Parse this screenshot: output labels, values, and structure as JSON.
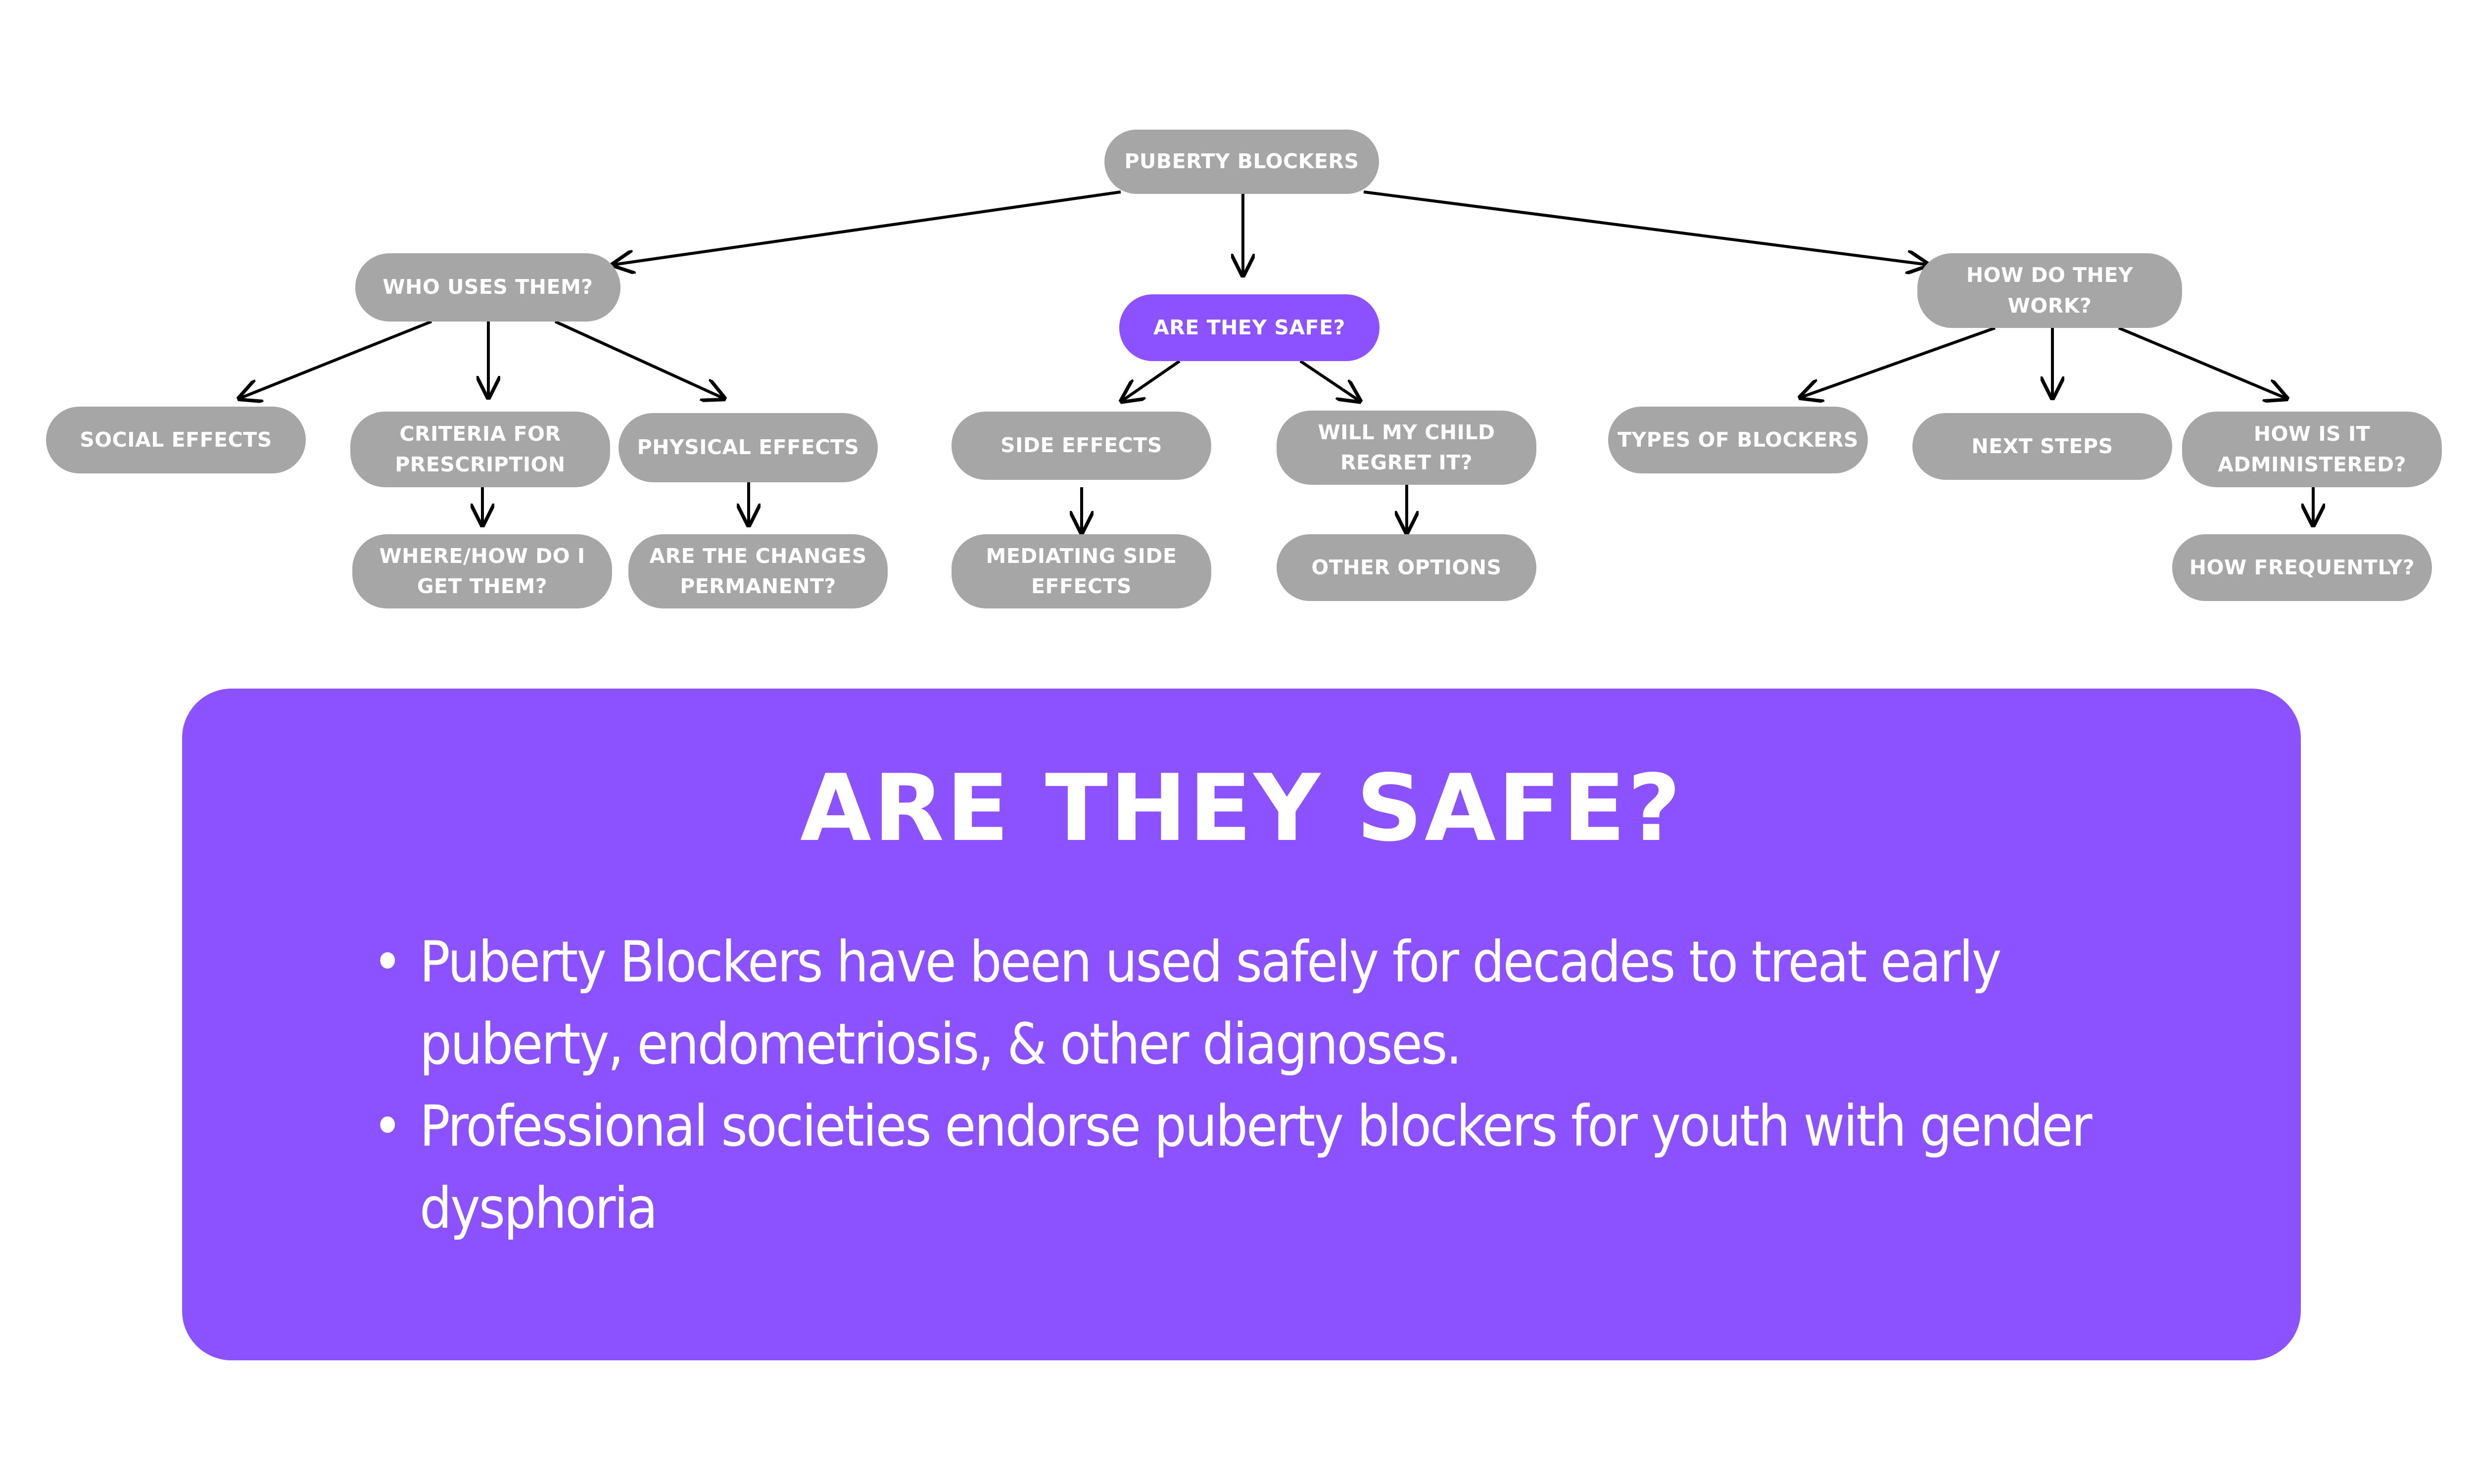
{
  "colors": {
    "node_default": "#a6a6a6",
    "node_active": "#8c52ff",
    "panel": "#8c52ff",
    "text": "#ffffff",
    "arrow": "#000000"
  },
  "nodes": {
    "root": "PUBERTY BLOCKERS",
    "who_uses": "WHO USES THEM?",
    "are_safe": "ARE THEY SAFE?",
    "how_work": "HOW DO THEY WORK?",
    "social_effects": "SOCIAL EFFECTS",
    "criteria": "CRITERIA FOR PRESCRIPTION",
    "physical_effects": "PHYSICAL EFFECTS",
    "where_how": "WHERE/HOW DO I GET THEM?",
    "changes_permanent": "ARE THE CHANGES PERMANENT?",
    "side_effects": "SIDE EFFECTS",
    "regret": "WILL MY CHILD REGRET IT?",
    "mediating": "MEDIATING SIDE EFFECTS",
    "other_options": "OTHER OPTIONS",
    "types": "TYPES OF BLOCKERS",
    "next_steps": "NEXT STEPS",
    "administered": "HOW IS IT ADMINISTERED?",
    "frequency": "HOW FREQUENTLY?"
  },
  "panel": {
    "title": "ARE THEY SAFE?",
    "bullets": [
      "Puberty Blockers have been used safely for decades to treat early puberty, endometriosis, & other diagnoses.",
      "Professional societies endorse puberty blockers for youth with gender dysphoria"
    ]
  }
}
